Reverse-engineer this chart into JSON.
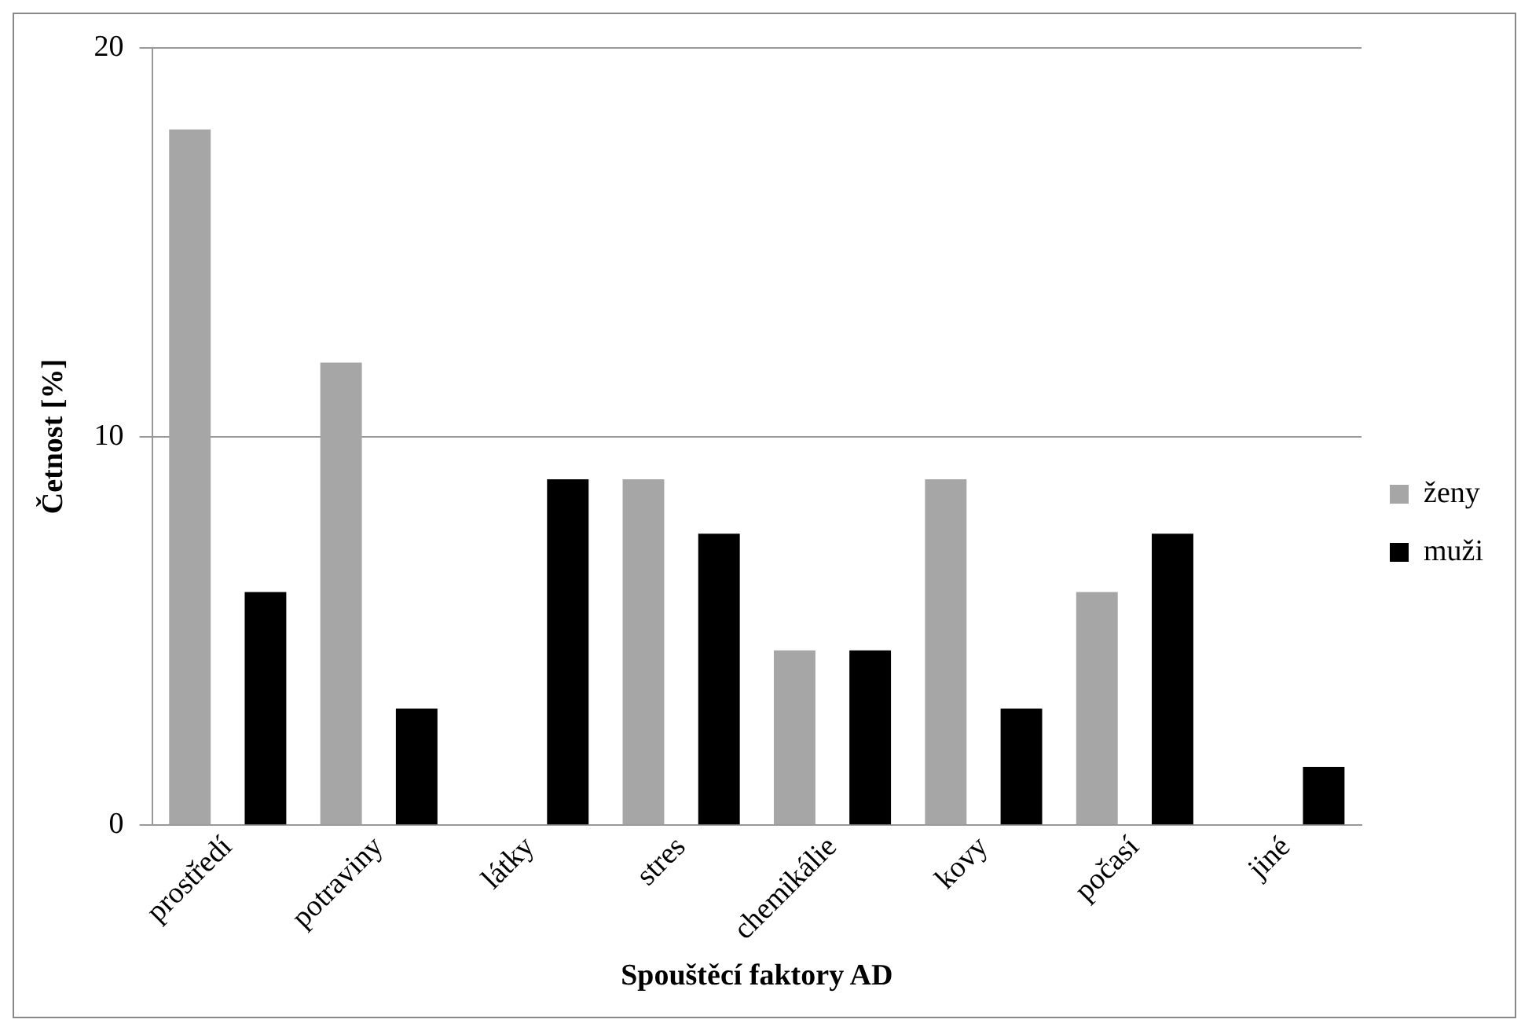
{
  "chart_data": {
    "type": "bar",
    "xlabel": "Spouštěcí faktory AD",
    "ylabel": "Četnost [%]",
    "categories": [
      "prostředí",
      "potraviny",
      "látky",
      "stres",
      "chemikálie",
      "kovy",
      "počasí",
      "jiné"
    ],
    "series": [
      {
        "name": "ženy",
        "color": "#a6a6a6",
        "values": [
          17.9,
          11.9,
          0,
          8.9,
          4.5,
          8.9,
          6,
          0
        ]
      },
      {
        "name": "muži",
        "color": "#000000",
        "values": [
          6,
          3,
          8.9,
          7.5,
          4.5,
          3,
          7.5,
          1.5
        ]
      }
    ],
    "ylim": [
      0,
      20
    ],
    "yticks": [
      0,
      10,
      20
    ],
    "grid": "y",
    "legend": "right"
  }
}
